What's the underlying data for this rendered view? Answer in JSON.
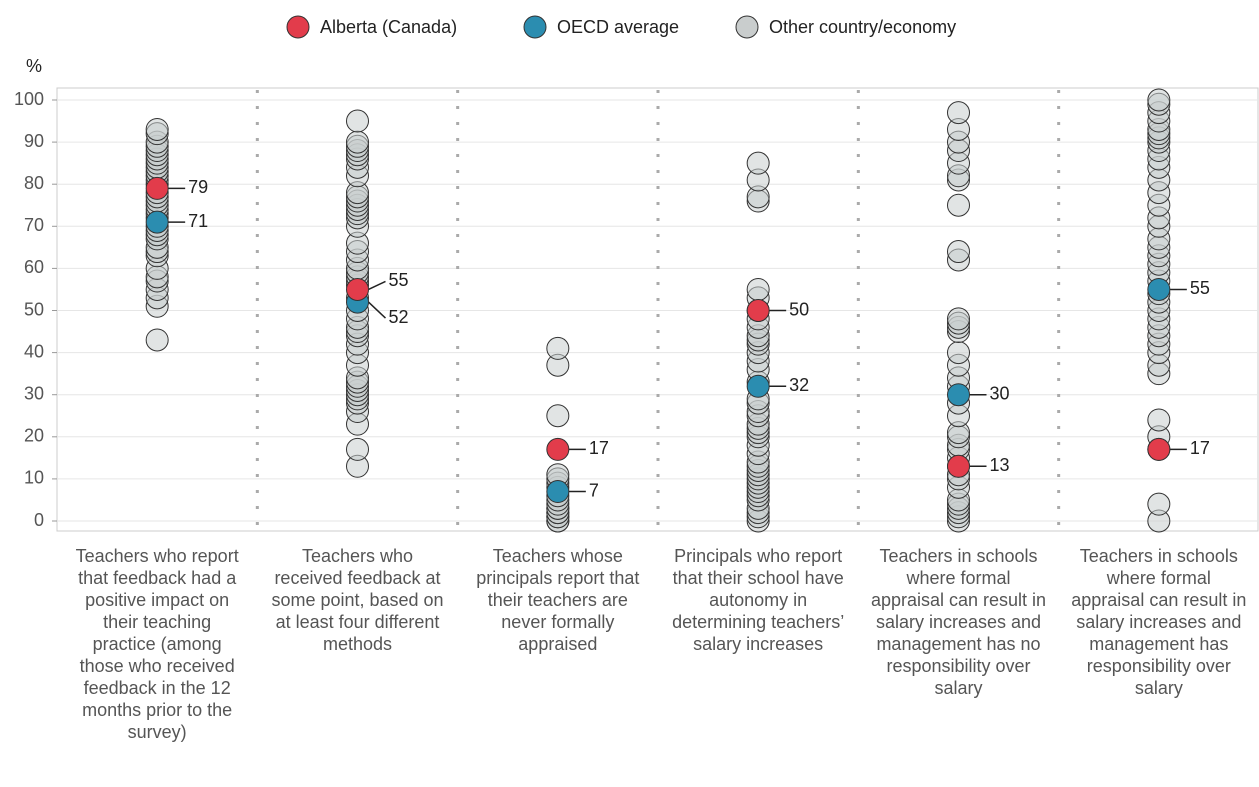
{
  "chart_data": {
    "type": "strip",
    "y_label": "%",
    "categories": [
      "Teachers who report that feedback had a positive impact on their teaching practice (among those who received feedback in the 12 months prior to the survey)",
      "Teachers who received feedback at some point, based on at least four different methods",
      "Teachers whose principals report that their teachers are never formally appraised",
      "Principals who report that their school have autonomy in determining teachers’ salary increases",
      "Teachers in schools where formal appraisal can result in salary increases and management has no responsibility over salary",
      "Teachers in schools where formal appraisal can result in salary increases and management has responsibility over salary"
    ],
    "ylim": [
      0,
      100
    ],
    "yticks": [
      0,
      10,
      20,
      30,
      40,
      50,
      60,
      70,
      80,
      90,
      100
    ],
    "grid": true,
    "legend": "top",
    "series": [
      {
        "name": "Other country/economy",
        "color": "#c9cdcd",
        "values": [
          [
            43,
            51,
            53,
            55,
            57,
            58,
            60,
            63,
            64,
            65,
            67,
            68,
            69,
            70,
            72,
            73,
            74,
            75,
            76,
            77,
            78,
            80,
            81,
            82,
            83,
            84,
            85,
            86,
            87,
            88,
            89,
            90,
            92,
            93
          ],
          [
            13,
            17,
            23,
            26,
            28,
            29,
            30,
            31,
            32,
            33,
            34,
            37,
            40,
            42,
            44,
            45,
            46,
            48,
            50,
            53,
            56,
            57,
            58,
            59,
            60,
            62,
            64,
            66,
            70,
            72,
            73,
            74,
            75,
            76,
            77,
            78,
            82,
            84,
            86,
            87,
            88,
            89,
            90,
            95
          ],
          [
            0,
            0,
            1,
            1,
            2,
            2,
            3,
            3,
            4,
            5,
            6,
            8,
            9,
            10,
            11,
            25,
            37,
            41
          ],
          [
            0,
            1,
            2,
            3,
            5,
            6,
            7,
            8,
            9,
            10,
            11,
            12,
            13,
            14,
            16,
            18,
            20,
            21,
            22,
            23,
            25,
            26,
            28,
            29,
            33,
            36,
            38,
            40,
            42,
            43,
            44,
            46,
            48,
            50,
            53,
            55,
            76,
            77,
            81,
            85
          ],
          [
            0,
            1,
            2,
            3,
            4,
            5,
            8,
            10,
            11,
            13,
            15,
            17,
            18,
            20,
            21,
            25,
            28,
            32,
            34,
            37,
            40,
            45,
            46,
            47,
            48,
            62,
            64,
            75,
            81,
            82,
            85,
            88,
            90,
            93,
            97
          ],
          [
            0,
            4,
            17,
            20,
            24,
            35,
            37,
            40,
            42,
            44,
            46,
            48,
            50,
            52,
            54,
            57,
            59,
            61,
            63,
            65,
            67,
            70,
            72,
            75,
            78,
            81,
            84,
            86,
            88,
            90,
            91,
            92,
            93,
            95,
            97,
            99,
            100
          ]
        ]
      },
      {
        "name": "OECD average",
        "color": "#2b8db0",
        "values": [
          71,
          52,
          7,
          32,
          30,
          55
        ]
      },
      {
        "name": "Alberta (Canada)",
        "color": "#e23c4b",
        "values": [
          79,
          55,
          17,
          50,
          13,
          17
        ]
      }
    ]
  }
}
